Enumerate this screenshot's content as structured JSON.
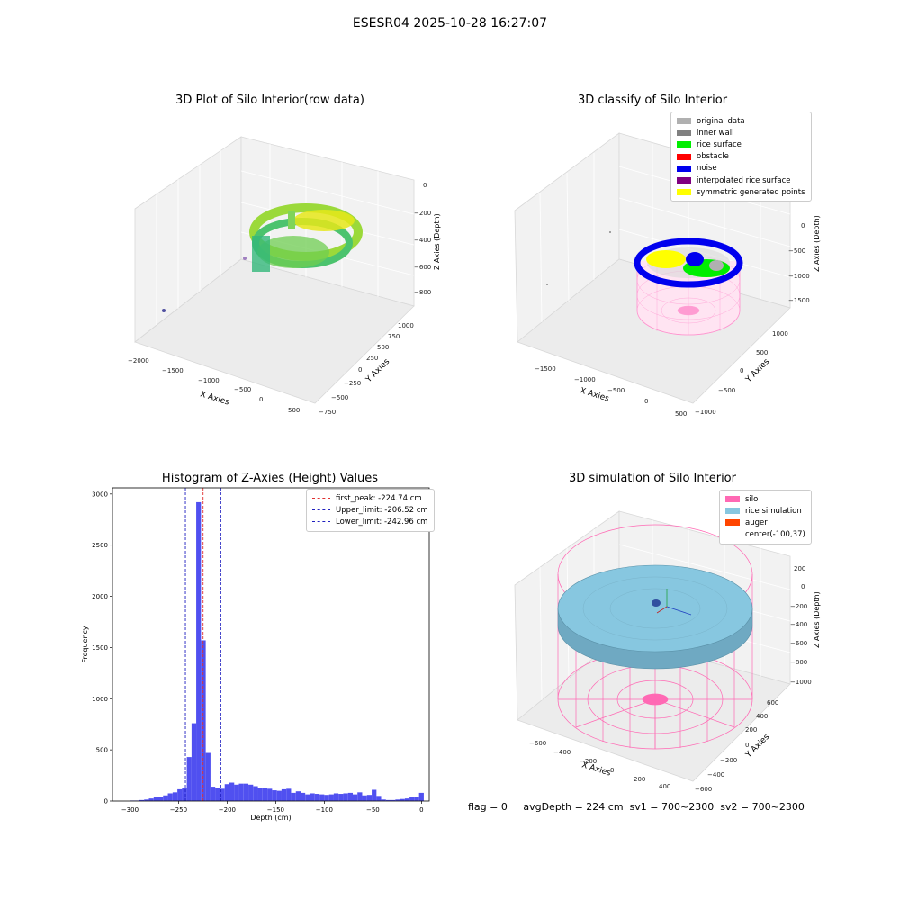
{
  "page": {
    "suptitle": "ESESR04 2025-10-28 16:27:07",
    "footer": "flag = 0     avgDepth = 224 cm  sv1 = 700~2300  sv2 = 700~2300"
  },
  "colors": {
    "hist_bar": "#5050f0",
    "first_peak": "#e03030",
    "limits": "#2020c0",
    "silo": "#ff69b4",
    "rice_simulation": "#87c7e0",
    "auger": "#ff4500"
  },
  "panel_raw": {
    "title": "3D Plot of Silo Interior(row data)",
    "xlabel": "X Axies",
    "ylabel": "Y Axies",
    "zlabel": "Z Axies (Depth)",
    "xticks": [
      "−2000",
      "−1500",
      "−1000",
      "−500",
      "0",
      "500"
    ],
    "yticks": [
      "−750",
      "−500",
      "−250",
      "0",
      "250",
      "500",
      "750",
      "1000"
    ],
    "zticks": [
      "0",
      "−200",
      "−400",
      "−600",
      "−800"
    ]
  },
  "panel_classify": {
    "title": "3D classify of Silo Interior",
    "xlabel": "X Axies",
    "ylabel": "Y Axies",
    "zlabel": "Z Axies (Depth)",
    "xticks": [
      "−1500",
      "−1000",
      "−500",
      "0",
      "500"
    ],
    "yticks": [
      "−1000",
      "−500",
      "0",
      "500",
      "1000"
    ],
    "zticks": [
      "500",
      "0",
      "−500",
      "−1000",
      "−1500"
    ],
    "legend": [
      {
        "label": "original data",
        "color": "#b0b0b0"
      },
      {
        "label": "inner wall",
        "color": "#808080"
      },
      {
        "label": "rice surface",
        "color": "#00ee00"
      },
      {
        "label": "obstacle",
        "color": "#ff0000"
      },
      {
        "label": "noise",
        "color": "#0000ee"
      },
      {
        "label": "interpolated rice surface",
        "color": "#800080"
      },
      {
        "label": "symmetric generated points",
        "color": "#ffff00"
      }
    ]
  },
  "panel_sim": {
    "title": "3D simulation of Silo Interior",
    "xlabel": "X Axies",
    "ylabel": "Y Axies",
    "zlabel": "Z Axies (Depth)",
    "xticks": [
      "−600",
      "−400",
      "−200",
      "0",
      "200",
      "400"
    ],
    "yticks": [
      "−600",
      "−400",
      "−200",
      "0",
      "200",
      "400",
      "600"
    ],
    "zticks": [
      "200",
      "0",
      "−200",
      "−400",
      "−600",
      "−800",
      "−1000"
    ],
    "legend": [
      {
        "label": "silo",
        "color": "#ff69b4"
      },
      {
        "label": "rice simulation",
        "color": "#87c7e0"
      },
      {
        "label": "auger",
        "color": "#ff4500"
      },
      {
        "label": "center(-100,37)",
        "color": ""
      }
    ]
  },
  "chart_data": {
    "type": "bar",
    "title": "Histogram of Z-Axies (Height) Values",
    "xlabel": "Depth (cm)",
    "ylabel": "Frequency",
    "xlim": [
      -318,
      8
    ],
    "ylim": [
      0,
      3060
    ],
    "xticks": [
      -300,
      -250,
      -200,
      -150,
      -100,
      -50,
      0
    ],
    "yticks": [
      0,
      500,
      1000,
      1500,
      2000,
      2500,
      3000
    ],
    "bin_width": 4.87,
    "bins": [
      [
        -300.0,
        5
      ],
      [
        -295.1,
        5
      ],
      [
        -290.3,
        10
      ],
      [
        -285.4,
        15
      ],
      [
        -280.5,
        25
      ],
      [
        -275.6,
        35
      ],
      [
        -270.8,
        40
      ],
      [
        -265.9,
        55
      ],
      [
        -261.0,
        75
      ],
      [
        -256.1,
        85
      ],
      [
        -251.2,
        115
      ],
      [
        -246.4,
        130
      ],
      [
        -241.5,
        430
      ],
      [
        -236.6,
        760
      ],
      [
        -231.8,
        2920
      ],
      [
        -226.9,
        1570
      ],
      [
        -222.0,
        470
      ],
      [
        -217.1,
        140
      ],
      [
        -212.3,
        130
      ],
      [
        -207.4,
        120
      ],
      [
        -202.5,
        165
      ],
      [
        -197.6,
        180
      ],
      [
        -192.8,
        160
      ],
      [
        -187.9,
        170
      ],
      [
        -183.0,
        170
      ],
      [
        -178.1,
        160
      ],
      [
        -173.2,
        145
      ],
      [
        -168.4,
        130
      ],
      [
        -163.5,
        130
      ],
      [
        -158.6,
        120
      ],
      [
        -153.7,
        105
      ],
      [
        -148.8,
        100
      ],
      [
        -144.0,
        115
      ],
      [
        -139.1,
        120
      ],
      [
        -134.2,
        80
      ],
      [
        -129.3,
        95
      ],
      [
        -124.5,
        80
      ],
      [
        -119.6,
        65
      ],
      [
        -114.7,
        75
      ],
      [
        -109.8,
        70
      ],
      [
        -104.9,
        65
      ],
      [
        -100.0,
        60
      ],
      [
        -95.1,
        65
      ],
      [
        -90.3,
        75
      ],
      [
        -85.4,
        70
      ],
      [
        -80.5,
        75
      ],
      [
        -75.6,
        80
      ],
      [
        -70.8,
        65
      ],
      [
        -65.9,
        85
      ],
      [
        -61.0,
        55
      ],
      [
        -56.1,
        60
      ],
      [
        -51.2,
        110
      ],
      [
        -46.4,
        50
      ],
      [
        -41.5,
        15
      ],
      [
        -36.6,
        10
      ],
      [
        -31.8,
        10
      ],
      [
        -26.9,
        15
      ],
      [
        -22.0,
        20
      ],
      [
        -17.1,
        25
      ],
      [
        -12.3,
        35
      ],
      [
        -7.4,
        40
      ],
      [
        -2.5,
        80
      ]
    ],
    "lines": [
      {
        "name": "first_peak: -224.74 cm",
        "x": -224.74,
        "color": "#e03030"
      },
      {
        "name": "Upper_limit: -206.52 cm",
        "x": -206.52,
        "color": "#2020c0"
      },
      {
        "name": "Lower_limit: -242.96 cm",
        "x": -242.96,
        "color": "#2020c0"
      }
    ],
    "legend_placement": "top-right",
    "grid": false
  }
}
